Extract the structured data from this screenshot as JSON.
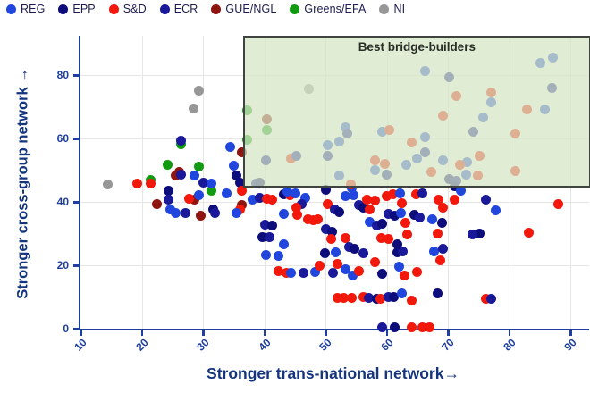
{
  "chart_data": {
    "type": "scatter",
    "title": "",
    "xlabel": "Stronger trans-national network→",
    "ylabel": "Stronger cross-group network →",
    "xlim": [
      10,
      93
    ],
    "ylim": [
      0,
      92.4
    ],
    "x_ticks": [
      10,
      20,
      30,
      40,
      50,
      60,
      70,
      80,
      90
    ],
    "y_ticks": [
      0,
      20,
      40,
      60,
      80
    ],
    "grid": true,
    "legend_position": "top",
    "annotation": {
      "label": "Best bridge-builders",
      "x_min": 36.5,
      "y_min": 45.6,
      "fill": "#d5e5c3",
      "fill_opacity": 0.74,
      "border_color": "#3f4440"
    },
    "groups": [
      {
        "name": "REG",
        "color": "#2146dd"
      },
      {
        "name": "EPP",
        "color": "#0c0c7a"
      },
      {
        "name": "S&D",
        "color": "#f2180c"
      },
      {
        "name": "ECR",
        "color": "#191999"
      },
      {
        "name": "GUE/NGL",
        "color": "#8e1410"
      },
      {
        "name": "Greens/EFA",
        "color": "#129b12"
      },
      {
        "name": "NI",
        "color": "#979797"
      }
    ],
    "points": [
      [
        14.5,
        45.5,
        "NI"
      ],
      [
        29.3,
        75.2,
        "NI"
      ],
      [
        28.4,
        69.5,
        "NI"
      ],
      [
        47.2,
        75.5,
        "NI"
      ],
      [
        37.2,
        69,
        "Greens/EFA"
      ],
      [
        40.4,
        62.8,
        "Greens/EFA"
      ],
      [
        37.2,
        59.5,
        "Greens/EFA"
      ],
      [
        26.4,
        58.2,
        "Greens/EFA"
      ],
      [
        24.2,
        51.8,
        "Greens/EFA"
      ],
      [
        29.3,
        51,
        "Greens/EFA"
      ],
      [
        21.5,
        46.9,
        "Greens/EFA"
      ],
      [
        31.4,
        43.4,
        "Greens/EFA"
      ],
      [
        40.4,
        66.2,
        "GUE/NGL"
      ],
      [
        36.4,
        55.5,
        "GUE/NGL"
      ],
      [
        25.5,
        48.2,
        "GUE/NGL"
      ],
      [
        26.1,
        49.3,
        "GUE/NGL"
      ],
      [
        22.5,
        39.4,
        "GUE/NGL"
      ],
      [
        28.6,
        40.8,
        "GUE/NGL"
      ],
      [
        29.6,
        35.5,
        "GUE/NGL"
      ],
      [
        36.4,
        38.9,
        "GUE/NGL"
      ],
      [
        19.3,
        45.7,
        "S&D"
      ],
      [
        21.4,
        45.9,
        "S&D"
      ],
      [
        26.4,
        59.3,
        "ECR"
      ],
      [
        34.5,
        57.4,
        "REG"
      ],
      [
        35,
        51.4,
        "REG"
      ],
      [
        35.4,
        48.2,
        "EPP"
      ],
      [
        26.4,
        48.5,
        "ECR"
      ],
      [
        28.6,
        48.3,
        "REG"
      ],
      [
        30,
        46.2,
        "ECR"
      ],
      [
        31.4,
        45.7,
        "REG"
      ],
      [
        36.1,
        46.2,
        "EPP"
      ],
      [
        38.7,
        45.9,
        "ECR"
      ],
      [
        24.3,
        43.4,
        "EPP"
      ],
      [
        24.3,
        40.8,
        "ECR"
      ],
      [
        27.7,
        41.1,
        "S&D"
      ],
      [
        29.3,
        42,
        "REG"
      ],
      [
        33.8,
        42.8,
        "REG"
      ],
      [
        36.4,
        43.4,
        "S&D"
      ],
      [
        38.1,
        40.6,
        "REG"
      ],
      [
        24.6,
        37.7,
        "REG"
      ],
      [
        25.5,
        36.6,
        "REG"
      ],
      [
        27.1,
        36.6,
        "ECR"
      ],
      [
        31.6,
        37.7,
        "EPP"
      ],
      [
        32,
        36.6,
        "ECR"
      ],
      [
        36.1,
        37.7,
        "S&D"
      ],
      [
        35.4,
        36.6,
        "REG"
      ],
      [
        39.3,
        46.2,
        "EPP"
      ],
      [
        39.3,
        41.4,
        "ECR"
      ],
      [
        40.4,
        41.1,
        "S&D"
      ],
      [
        41.3,
        40.8,
        "S&D"
      ],
      [
        43.2,
        42.3,
        "EPP"
      ],
      [
        44.2,
        42,
        "S&D"
      ],
      [
        45.1,
        42.8,
        "REG"
      ],
      [
        43.8,
        43.2,
        "REG"
      ],
      [
        46.7,
        41.4,
        "REG"
      ],
      [
        46.1,
        39.2,
        "ECR"
      ],
      [
        45.2,
        38.3,
        "S&D"
      ],
      [
        43.2,
        36.3,
        "REG"
      ],
      [
        45.4,
        35.8,
        "S&D"
      ],
      [
        47.1,
        34.6,
        "S&D"
      ],
      [
        48,
        34.1,
        "S&D"
      ],
      [
        40.1,
        32.7,
        "ECR"
      ],
      [
        41.3,
        32.4,
        "EPP"
      ],
      [
        39.7,
        29,
        "EPP"
      ],
      [
        40.9,
        29,
        "ECR"
      ],
      [
        43.2,
        26.5,
        "REG"
      ],
      [
        40.3,
        23.3,
        "REG"
      ],
      [
        42.3,
        23.1,
        "REG"
      ],
      [
        42.3,
        18.3,
        "S&D"
      ],
      [
        43.6,
        17.5,
        "S&D"
      ],
      [
        44.4,
        17.7,
        "REG"
      ],
      [
        46.4,
        17.5,
        "ECR"
      ],
      [
        48.3,
        18,
        "REG"
      ],
      [
        49,
        20,
        "S&D"
      ],
      [
        50.1,
        43.9,
        "EPP"
      ],
      [
        50.4,
        39.4,
        "S&D"
      ],
      [
        51.5,
        37.7,
        "ECR"
      ],
      [
        52.3,
        36.9,
        "EPP"
      ],
      [
        48.8,
        34.6,
        "S&D"
      ],
      [
        50,
        31.5,
        "ECR"
      ],
      [
        51,
        30.7,
        "EPP"
      ],
      [
        50.9,
        28.2,
        "S&D"
      ],
      [
        54.2,
        44.5,
        "REG"
      ],
      [
        53.3,
        41.7,
        "REG"
      ],
      [
        54.5,
        42,
        "REG"
      ],
      [
        55.5,
        38.9,
        "ECR"
      ],
      [
        56.1,
        38.3,
        "EPP"
      ],
      [
        56.7,
        40.6,
        "S&D"
      ],
      [
        58,
        40.3,
        "S&D"
      ],
      [
        57.2,
        37.5,
        "S&D"
      ],
      [
        57.2,
        33.8,
        "REG"
      ],
      [
        58.3,
        32.4,
        "ECR"
      ],
      [
        59.3,
        33.2,
        "EPP"
      ],
      [
        53.3,
        28.5,
        "S&D"
      ],
      [
        53.8,
        25.9,
        "ECR"
      ],
      [
        54.7,
        25.1,
        "EPP"
      ],
      [
        51.6,
        24.2,
        "REG"
      ],
      [
        56.1,
        23.7,
        "ECR"
      ],
      [
        49.9,
        23.7,
        "EPP"
      ],
      [
        51.2,
        17.5,
        "ECR"
      ],
      [
        52,
        20.3,
        "S&D"
      ],
      [
        53.2,
        18.6,
        "REG"
      ],
      [
        54.4,
        16.9,
        "REG"
      ],
      [
        55.5,
        18.3,
        "S&D"
      ],
      [
        58,
        21.1,
        "S&D"
      ],
      [
        59.3,
        17.2,
        "EPP"
      ],
      [
        62,
        19.7,
        "REG"
      ],
      [
        62.9,
        16.9,
        "S&D"
      ],
      [
        64.9,
        18,
        "S&D"
      ],
      [
        61.7,
        24.2,
        "EPP"
      ],
      [
        62.6,
        24.5,
        "ECR"
      ],
      [
        51.9,
        9.6,
        "S&D"
      ],
      [
        53,
        9.6,
        "S&D"
      ],
      [
        54.2,
        9.6,
        "S&D"
      ],
      [
        56.1,
        10.1,
        "S&D"
      ],
      [
        57.1,
        9.6,
        "ECR"
      ],
      [
        58.3,
        9.3,
        "EPP"
      ],
      [
        59,
        9.3,
        "S&D"
      ],
      [
        60.2,
        9.9,
        "ECR"
      ],
      [
        61.2,
        9.9,
        "EPP"
      ],
      [
        62.4,
        11,
        "REG"
      ],
      [
        64.1,
        9,
        "S&D"
      ],
      [
        68.3,
        11,
        "EPP"
      ],
      [
        76.2,
        9.3,
        "S&D"
      ],
      [
        77.1,
        9.3,
        "ECR"
      ],
      [
        59.3,
        0.5,
        "ECR"
      ],
      [
        61.3,
        0.5,
        "EPP"
      ],
      [
        64,
        0.5,
        "S&D"
      ],
      [
        65.8,
        0.5,
        "S&D"
      ],
      [
        67,
        0.5,
        "S&D"
      ],
      [
        59.9,
        41.7,
        "S&D"
      ],
      [
        61,
        42.3,
        "S&D"
      ],
      [
        60.3,
        36.3,
        "ECR"
      ],
      [
        61.3,
        35.5,
        "EPP"
      ],
      [
        59.1,
        28.7,
        "S&D"
      ],
      [
        60.3,
        28.2,
        "S&D"
      ],
      [
        62.2,
        42.8,
        "REG"
      ],
      [
        62.5,
        39.7,
        "S&D"
      ],
      [
        62.3,
        36.6,
        "REG"
      ],
      [
        63,
        33.5,
        "S&D"
      ],
      [
        64.8,
        42.3,
        "S&D"
      ],
      [
        65.8,
        42.8,
        "ECR"
      ],
      [
        64.5,
        36,
        "EPP"
      ],
      [
        65.4,
        35.2,
        "ECR"
      ],
      [
        67.4,
        34.6,
        "REG"
      ],
      [
        63.3,
        29.6,
        "S&D"
      ],
      [
        61.7,
        26.5,
        "EPP"
      ],
      [
        67.7,
        24.5,
        "REG"
      ],
      [
        70.2,
        47.2,
        "EPP"
      ],
      [
        71.3,
        46.6,
        "ECR"
      ],
      [
        71,
        44.8,
        "EPP"
      ],
      [
        72,
        43.4,
        "REG"
      ],
      [
        68.4,
        40.8,
        "S&D"
      ],
      [
        71,
        40.6,
        "S&D"
      ],
      [
        69.1,
        38.3,
        "S&D"
      ],
      [
        76.1,
        40.6,
        "ECR"
      ],
      [
        77.8,
        37.2,
        "REG"
      ],
      [
        88,
        39.2,
        "S&D"
      ],
      [
        69,
        33.5,
        "EPP"
      ],
      [
        68.3,
        30.1,
        "S&D"
      ],
      [
        75.1,
        30.1,
        "EPP"
      ],
      [
        73.9,
        29.6,
        "ECR"
      ],
      [
        83.2,
        30.4,
        "S&D"
      ],
      [
        69.1,
        25.1,
        "ECR"
      ],
      [
        68.7,
        21.5,
        "S&D"
      ],
      [
        53.2,
        63.4,
        "REG"
      ],
      [
        53.5,
        61.6,
        "ECR"
      ],
      [
        59.2,
        62.2,
        "REG"
      ],
      [
        60.4,
        62.6,
        "S&D"
      ],
      [
        50.3,
        58,
        "REG"
      ],
      [
        52.2,
        58.9,
        "REG"
      ],
      [
        64.1,
        58.6,
        "S&D"
      ],
      [
        40.3,
        53.2,
        "ECR"
      ],
      [
        44.4,
        53.8,
        "S&D"
      ],
      [
        45.2,
        54.6,
        "ECR"
      ],
      [
        50.3,
        54.6,
        "ECR"
      ],
      [
        58,
        53,
        "S&D"
      ],
      [
        59.7,
        52.1,
        "S&D"
      ],
      [
        58,
        50.1,
        "REG"
      ],
      [
        63.2,
        51.8,
        "REG"
      ],
      [
        59.9,
        48.7,
        "ECR"
      ],
      [
        52.3,
        48.2,
        "REG"
      ],
      [
        54.1,
        45.6,
        "S&D"
      ],
      [
        66.2,
        60.4,
        "REG"
      ],
      [
        74.1,
        62,
        "ECR"
      ],
      [
        81,
        61.6,
        "S&D"
      ],
      [
        66.2,
        55.5,
        "ECR"
      ],
      [
        64.9,
        53.8,
        "REG"
      ],
      [
        69.1,
        53.2,
        "REG"
      ],
      [
        75.2,
        54.6,
        "S&D"
      ],
      [
        73.1,
        52.4,
        "REG"
      ],
      [
        71.9,
        51.8,
        "S&D"
      ],
      [
        67.2,
        49.3,
        "S&D"
      ],
      [
        73,
        48.5,
        "REG"
      ],
      [
        74.9,
        48.2,
        "S&D"
      ],
      [
        81,
        49.6,
        "S&D"
      ],
      [
        66.2,
        81.4,
        "REG"
      ],
      [
        70.1,
        79.4,
        "ECR"
      ],
      [
        85.1,
        83.9,
        "REG"
      ],
      [
        87.1,
        85.6,
        "REG"
      ],
      [
        71.3,
        73.5,
        "S&D"
      ],
      [
        77.1,
        74.4,
        "S&D"
      ],
      [
        77,
        71.5,
        "REG"
      ],
      [
        87,
        75.8,
        "ECR"
      ],
      [
        82.9,
        69.3,
        "S&D"
      ],
      [
        85.8,
        69.3,
        "REG"
      ],
      [
        75.7,
        66.5,
        "REG"
      ],
      [
        69.1,
        67.3,
        "S&D"
      ]
    ]
  }
}
